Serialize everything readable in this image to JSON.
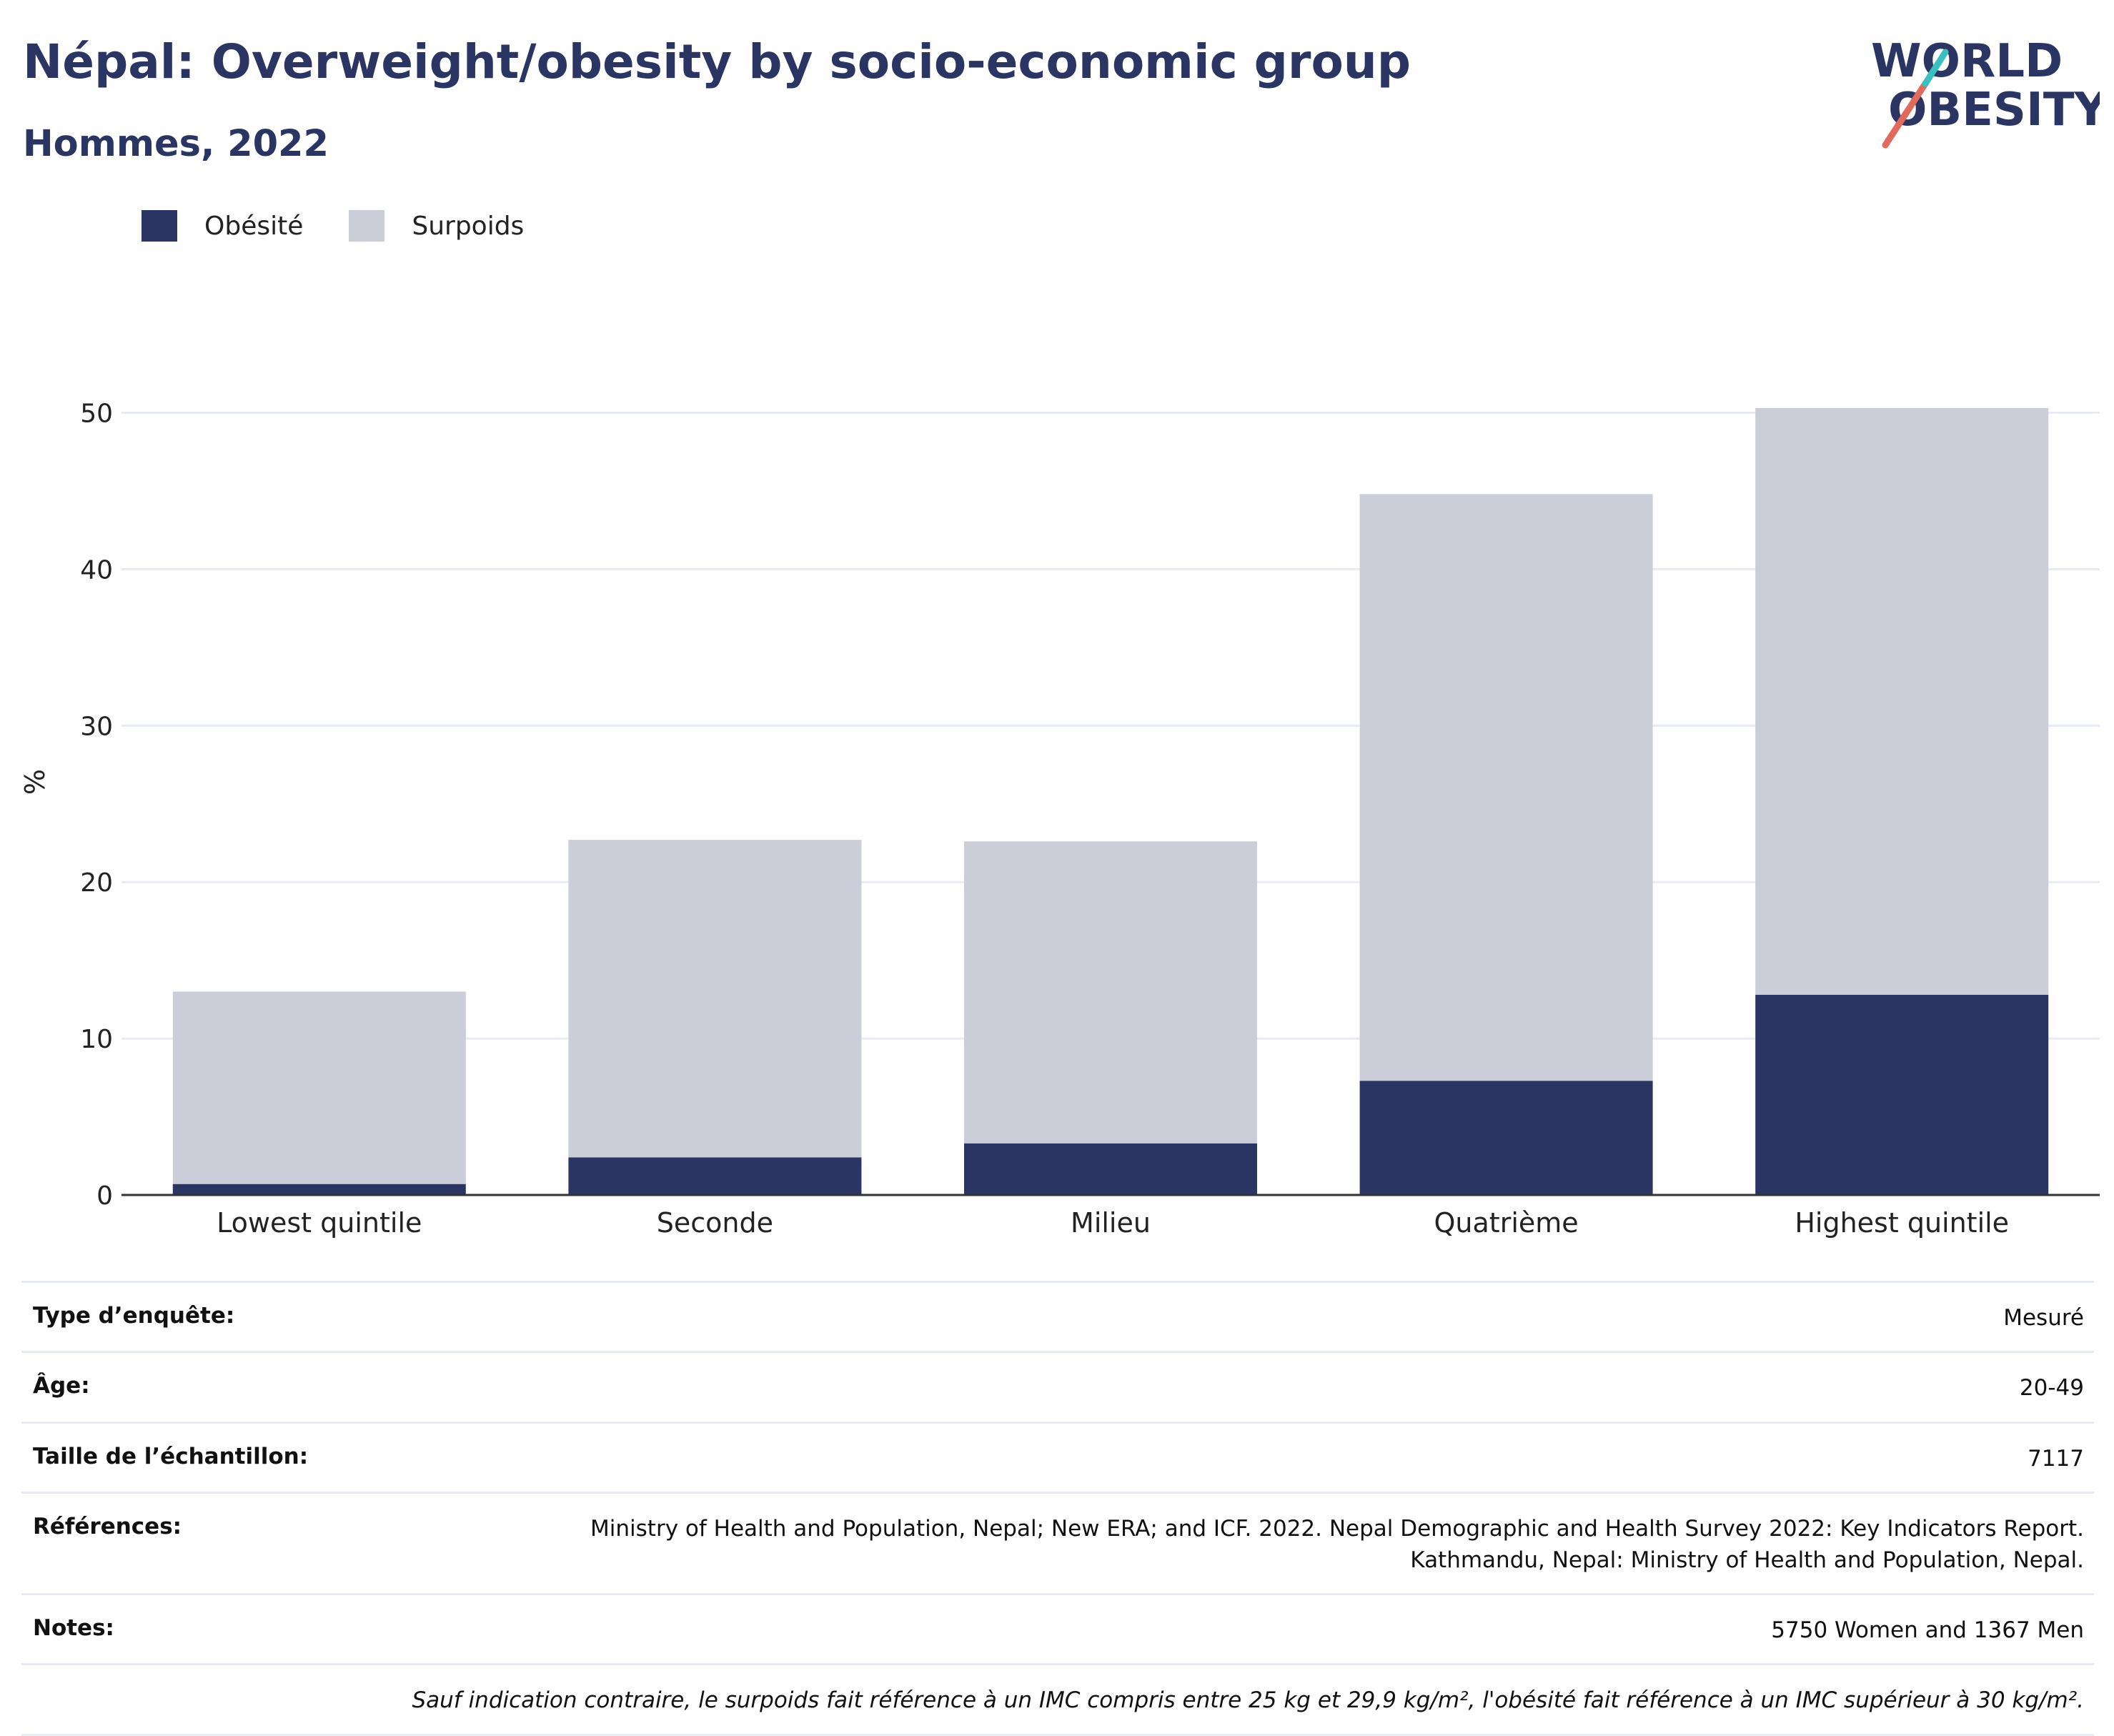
{
  "header": {
    "title": "Népal: Overweight/obesity by socio-economic group",
    "subtitle": "Hommes, 2022"
  },
  "logo": {
    "line1": "WORLD",
    "line2": "OBESITY",
    "colors": [
      "#2a3563",
      "#e06b5c",
      "#3bbfbf"
    ]
  },
  "legend": [
    {
      "label": "Obésité",
      "color": "#2a3563"
    },
    {
      "label": "Surpoids",
      "color": "#cbcdd9"
    }
  ],
  "chart_data": {
    "type": "bar",
    "stacked": true,
    "categories": [
      "Lowest quintile",
      "Seconde",
      "Milieu",
      "Quatrième",
      "Highest quintile"
    ],
    "series": [
      {
        "name": "Obésité",
        "color": "#2a3563",
        "values": [
          0.7,
          2.4,
          3.3,
          7.3,
          12.8
        ]
      },
      {
        "name": "Surpoids",
        "color": "#cbcdd9",
        "values": [
          12.3,
          20.3,
          19.3,
          37.5,
          37.5
        ]
      }
    ],
    "ylabel": "%",
    "ylim": [
      0,
      54
    ],
    "yticks": [
      0,
      10,
      20,
      30,
      40,
      50
    ],
    "grid": true,
    "legend_position": "top-left"
  },
  "info": {
    "survey_label": "Type d’enquête:",
    "survey_value": "Mesuré",
    "age_label": "Âge:",
    "age_value": "20-49",
    "sample_label": "Taille de l’échantillon:",
    "sample_value": "7117",
    "ref_label": "Références:",
    "ref_line1": "Ministry of Health and Population, Nepal; New ERA; and ICF. 2022. Nepal Demographic and Health Survey 2022: Key Indicators Report.",
    "ref_line2": "Kathmandu, Nepal: Ministry of Health and Population, Nepal.",
    "notes_label": "Notes:",
    "notes_value": "5750 Women and 1367 Men",
    "footnote": "Sauf indication contraire, le surpoids fait référence à un IMC compris entre 25 kg et 29,9 kg/m², l'obésité fait référence à un IMC supérieur à 30 kg/m²."
  }
}
